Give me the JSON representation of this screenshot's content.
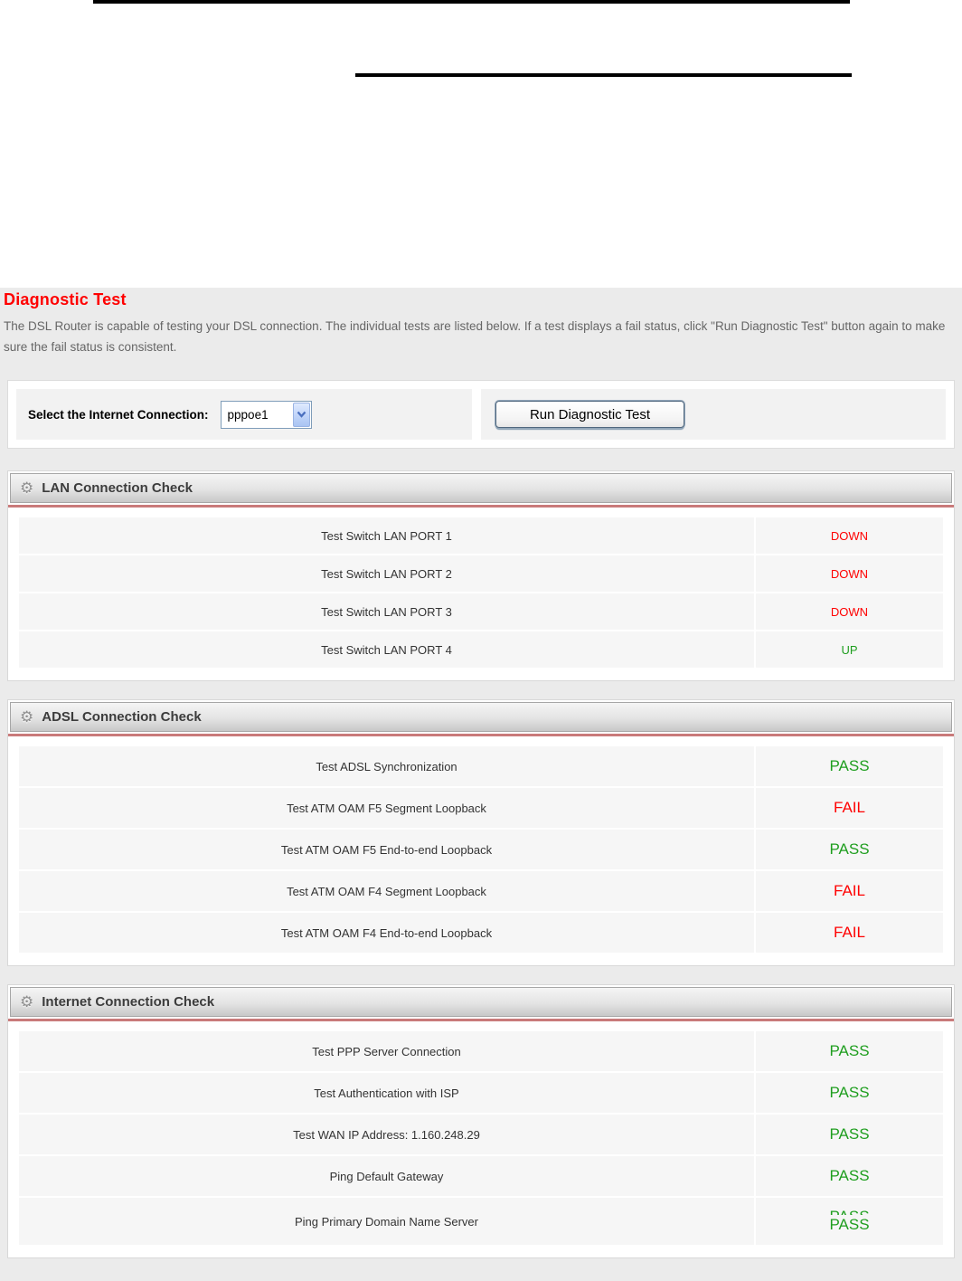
{
  "page": {
    "title": "Diagnostic Test",
    "title_color": "#ff0000",
    "description": "The DSL Router is capable of testing your DSL connection. The individual tests are listed below. If a test displays a fail status, click \"Run Diagnostic Test\" button again to make sure the fail status is consistent."
  },
  "controls": {
    "select_label": "Select the Internet Connection:",
    "select_value": "pppoe1",
    "run_button_label": "Run Diagnostic Test"
  },
  "status_colors": {
    "pass": "#1f9e1f",
    "fail": "#ff0000"
  },
  "sections": [
    {
      "key": "lan",
      "title": "LAN Connection Check",
      "rows": [
        {
          "test": "Test Switch LAN PORT 1",
          "status": "DOWN",
          "state": "fail"
        },
        {
          "test": "Test Switch LAN PORT 2",
          "status": "DOWN",
          "state": "fail"
        },
        {
          "test": "Test Switch LAN PORT 3",
          "status": "DOWN",
          "state": "fail"
        },
        {
          "test": "Test Switch LAN PORT 4",
          "status": "UP",
          "state": "pass"
        }
      ]
    },
    {
      "key": "adsl",
      "title": "ADSL Connection Check",
      "rows": [
        {
          "test": "Test ADSL Synchronization",
          "status": "PASS",
          "state": "pass"
        },
        {
          "test": "Test ATM OAM F5 Segment Loopback",
          "status": "FAIL",
          "state": "fail"
        },
        {
          "test": "Test ATM OAM F5 End-to-end Loopback",
          "status": "PASS",
          "state": "pass"
        },
        {
          "test": "Test ATM OAM F4 Segment Loopback",
          "status": "FAIL",
          "state": "fail"
        },
        {
          "test": "Test ATM OAM F4 End-to-end Loopback",
          "status": "FAIL",
          "state": "fail"
        }
      ]
    },
    {
      "key": "internet",
      "title": "Internet Connection Check",
      "rows": [
        {
          "test": "Test PPP Server Connection",
          "status": "PASS",
          "state": "pass"
        },
        {
          "test": "Test Authentication with ISP",
          "status": "PASS",
          "state": "pass"
        },
        {
          "test": "Test WAN IP Address: 1.160.248.29",
          "status": "PASS",
          "state": "pass"
        },
        {
          "test": "Ping Default Gateway",
          "status": "PASS",
          "state": "pass"
        },
        {
          "test": "Ping Primary Domain Name Server",
          "status": "PASS",
          "state": "pass",
          "artifact_status": "PASS"
        }
      ]
    }
  ]
}
